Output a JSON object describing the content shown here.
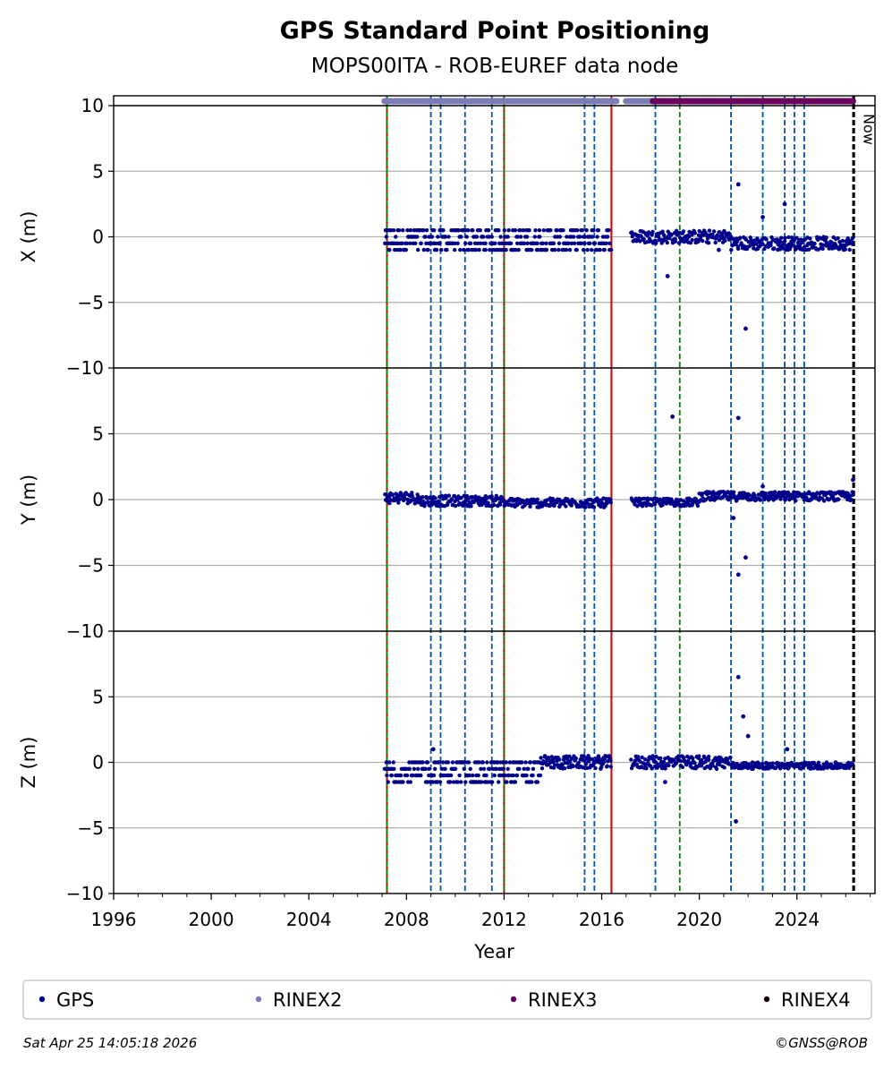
{
  "chart_data": {
    "type": "scatter",
    "title": "GPS Standard Point Positioning",
    "subtitle": "MOPS00ITA - ROB-EUREF data node",
    "xlabel": "Year",
    "xlim": [
      1996,
      2027.2
    ],
    "x_ticks": [
      "1996",
      "2000",
      "2004",
      "2008",
      "2012",
      "2016",
      "2020",
      "2024"
    ],
    "grid": "horizontal",
    "panels": [
      {
        "ylabel": "X (m)",
        "ylim": [
          -10,
          10
        ],
        "y_ticks": [
          "10",
          "5",
          "0",
          "−5",
          "−10"
        ],
        "y_tick_values": [
          10,
          5,
          0,
          -5,
          -10
        ]
      },
      {
        "ylabel": "Y (m)",
        "ylim": [
          -10,
          10
        ],
        "y_ticks": [
          "5",
          "0",
          "−5",
          "−10"
        ],
        "y_tick_values": [
          5,
          0,
          -5,
          -10
        ]
      },
      {
        "ylabel": "Z (m)",
        "ylim": [
          -10,
          10
        ],
        "y_ticks": [
          "5",
          "0",
          "−5",
          "−10"
        ],
        "y_tick_values": [
          5,
          0,
          -5,
          -10
        ]
      }
    ],
    "series": [
      {
        "name": "GPS",
        "color": "#00008b",
        "x_range": [
          2007.1,
          2026.3
        ],
        "gap": [
          2016.4,
          2017.2
        ],
        "bands": {
          "X": [
            [
              2007.1,
              2016.4,
              -1.0,
              0.5
            ],
            [
              2017.2,
              2021.3,
              -0.5,
              0.5
            ],
            [
              2021.3,
              2026.3,
              -1.0,
              0.0
            ]
          ],
          "Y": [
            [
              2007.1,
              2008.5,
              -0.3,
              0.6
            ],
            [
              2008.5,
              2012.0,
              -0.5,
              0.3
            ],
            [
              2012.0,
              2016.4,
              -0.6,
              0.1
            ],
            [
              2017.2,
              2020.0,
              -0.5,
              0.1
            ],
            [
              2020.0,
              2026.3,
              -0.1,
              0.6
            ]
          ],
          "Z": [
            [
              2007.1,
              2013.5,
              -1.5,
              0.0
            ],
            [
              2013.5,
              2016.4,
              -0.5,
              0.5
            ],
            [
              2017.2,
              2021.3,
              -0.5,
              0.5
            ],
            [
              2021.3,
              2026.3,
              -0.5,
              0.0
            ]
          ]
        },
        "outliers": {
          "X": [
            [
              2018.7,
              -3.0
            ],
            [
              2021.6,
              4.0
            ],
            [
              2021.9,
              -7.0
            ],
            [
              2022.6,
              1.5
            ],
            [
              2023.5,
              2.5
            ],
            [
              2020.8,
              -1.0
            ]
          ],
          "Y": [
            [
              2018.9,
              6.3
            ],
            [
              2021.6,
              6.2
            ],
            [
              2021.6,
              -5.7
            ],
            [
              2021.9,
              -4.4
            ],
            [
              2021.4,
              -1.4
            ],
            [
              2022.6,
              1.0
            ],
            [
              2026.3,
              1.5
            ]
          ],
          "Z": [
            [
              2009.1,
              1.0
            ],
            [
              2021.6,
              6.5
            ],
            [
              2021.8,
              3.5
            ],
            [
              2022.0,
              2.0
            ],
            [
              2021.5,
              -4.5
            ],
            [
              2018.6,
              -1.5
            ],
            [
              2023.6,
              1.0
            ]
          ]
        }
      },
      {
        "name": "RINEX2",
        "color": "#7b7bb8",
        "segments": [
          [
            2007.1,
            2016.6
          ],
          [
            2017.0,
            2018.1
          ]
        ]
      },
      {
        "name": "RINEX3",
        "color": "#6b0060",
        "segments": [
          [
            2018.1,
            2026.3
          ]
        ]
      },
      {
        "name": "RINEX4",
        "color": "#1a0010",
        "segments": []
      }
    ],
    "event_lines": [
      {
        "x": 2007.2,
        "color": "#cc0000",
        "style": "solid"
      },
      {
        "x": 2007.2,
        "color": "#008800",
        "style": "dashed"
      },
      {
        "x": 2012.0,
        "color": "#cc0000",
        "style": "solid"
      },
      {
        "x": 2012.0,
        "color": "#008800",
        "style": "dashed"
      },
      {
        "x": 2009.0,
        "color": "#0055aa",
        "style": "dashed"
      },
      {
        "x": 2009.4,
        "color": "#0055aa",
        "style": "dashed"
      },
      {
        "x": 2010.4,
        "color": "#0055aa",
        "style": "dashed"
      },
      {
        "x": 2011.5,
        "color": "#0055aa",
        "style": "dashed"
      },
      {
        "x": 2015.3,
        "color": "#0055aa",
        "style": "dashed"
      },
      {
        "x": 2015.7,
        "color": "#0055aa",
        "style": "dashed"
      },
      {
        "x": 2016.4,
        "color": "#cc0000",
        "style": "solid"
      },
      {
        "x": 2018.2,
        "color": "#0055aa",
        "style": "dashed"
      },
      {
        "x": 2019.2,
        "color": "#008800",
        "style": "dashed"
      },
      {
        "x": 2021.3,
        "color": "#0055aa",
        "style": "dashed"
      },
      {
        "x": 2022.6,
        "color": "#0055aa",
        "style": "dashed"
      },
      {
        "x": 2023.5,
        "color": "#0055aa",
        "style": "dashed"
      },
      {
        "x": 2023.9,
        "color": "#0055aa",
        "style": "dashed"
      },
      {
        "x": 2024.3,
        "color": "#0055aa",
        "style": "dashed"
      },
      {
        "x": 2026.3,
        "color": "#000000",
        "style": "dashed"
      },
      {
        "x": 2026.35,
        "color": "#000000",
        "style": "dashed"
      }
    ],
    "now_label": "Now",
    "now_x": 2026.3,
    "legend": {
      "placement": "bottom",
      "entries": [
        "GPS",
        "RINEX2",
        "RINEX3",
        "RINEX4"
      ]
    },
    "footer_left": "Sat Apr 25 14:05:18 2026",
    "footer_right": "©GNSS@ROB"
  }
}
